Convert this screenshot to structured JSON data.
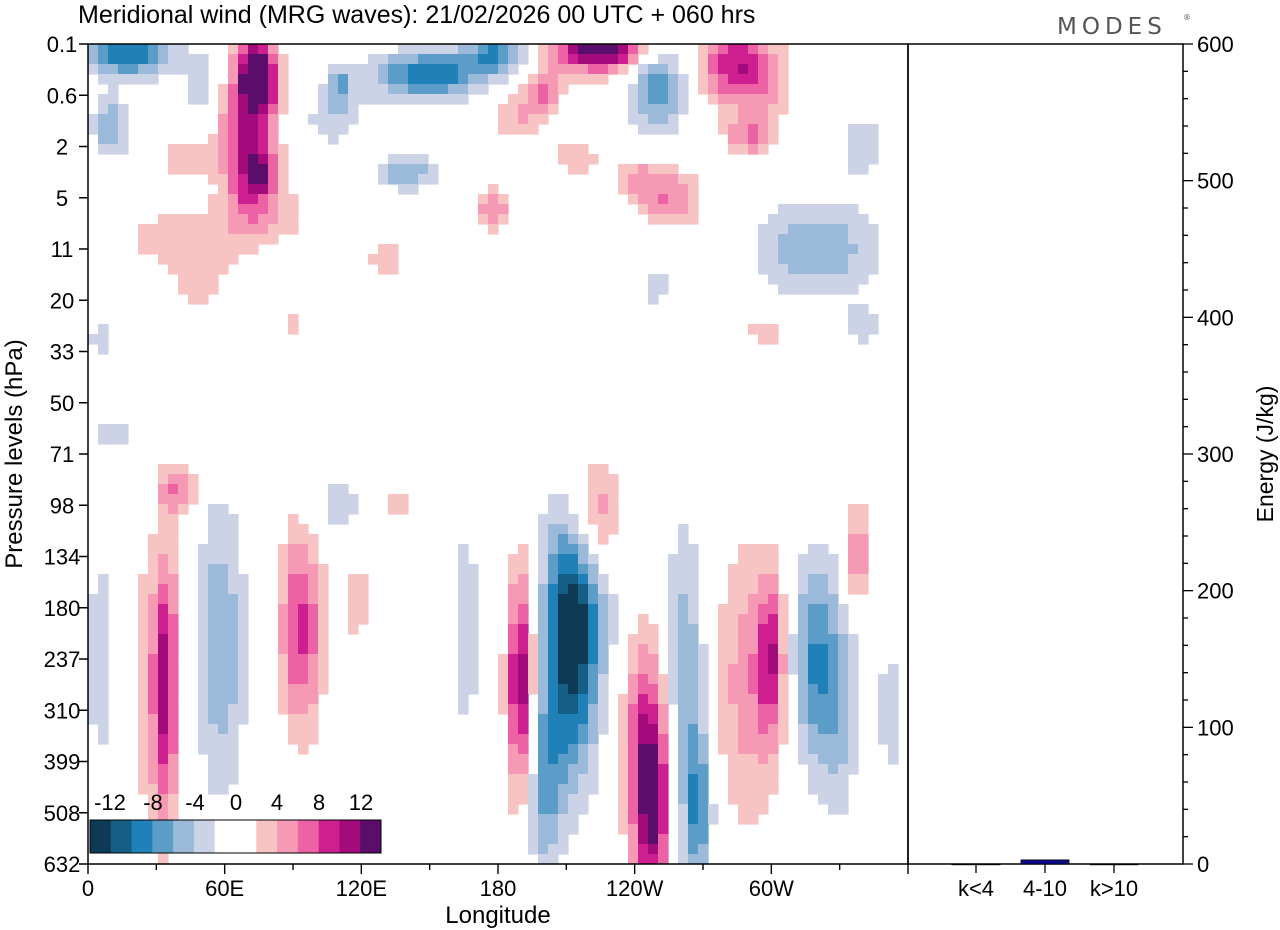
{
  "title": "Meridional wind (MRG waves):  21/02/2026  00 UTC  + 060 hrs",
  "logo": "MODES",
  "logo_mark": "®",
  "colors": {
    "neg": [
      "#0f3a55",
      "#155f86",
      "#1f81b8",
      "#5b9dc8",
      "#9bbad9",
      "#cdd3e6"
    ],
    "zero": "#ffffff",
    "pos": [
      "#f8c3c3",
      "#f599b4",
      "#ed62a5",
      "#cd1f8f",
      "#a30a7c",
      "#5b0d6b"
    ],
    "bar": "#0a0a8f"
  },
  "chart_data": [
    {
      "type": "heatmap",
      "title": "Meridional wind (MRG waves)",
      "xlabel": "Longitude",
      "ylabel": "Pressure levels (hPa)",
      "x_ticks": [
        "0",
        "60E",
        "120E",
        "180",
        "120W",
        "60W"
      ],
      "x_range_deg": [
        0,
        360
      ],
      "y_levels": [
        "0.1",
        "0.6",
        "2",
        "5",
        "11",
        "20",
        "33",
        "50",
        "71",
        "98",
        "134",
        "180",
        "237",
        "310",
        "399",
        "508",
        "632"
      ],
      "colorbar": {
        "labels": [
          "-12",
          "-8",
          "-4",
          "0",
          "4",
          "8",
          "12"
        ],
        "levels": [
          -14,
          -12,
          -10,
          -8,
          -6,
          -4,
          -2,
          2,
          4,
          6,
          8,
          10,
          12,
          14
        ]
      },
      "features": [
        {
          "lon": 18,
          "lev": 0.2,
          "lw": 18,
          "hl": 0.45,
          "v": -10
        },
        {
          "lon": 50,
          "lev": 0.7,
          "lw": 8,
          "hl": 0.6,
          "v": -4
        },
        {
          "lon": 10,
          "lev": 1.6,
          "lw": 8,
          "hl": 0.6,
          "v": -6
        },
        {
          "lon": 70,
          "lev": 1.8,
          "lw": 12,
          "hl": 1.5,
          "v": 10
        },
        {
          "lon": 75,
          "lev": 0.6,
          "lw": 8,
          "hl": 0.7,
          "v": 14
        },
        {
          "lon": 76,
          "lev": 2.6,
          "lw": 7,
          "hl": 0.5,
          "v": 8
        },
        {
          "lon": 80,
          "lev": 3.3,
          "lw": 22,
          "hl": 0.6,
          "v": 3
        },
        {
          "lon": 42,
          "lev": 2.2,
          "lw": 10,
          "hl": 0.4,
          "v": 4
        },
        {
          "lon": 78,
          "lev": 3.0,
          "lw": 5,
          "hl": 0.4,
          "v": -2.2
        },
        {
          "lon": 115,
          "lev": 1.5,
          "lw": 20,
          "hl": 0.5,
          "v": -4
        },
        {
          "lon": 150,
          "lev": 0.6,
          "lw": 24,
          "hl": 0.45,
          "v": -10
        },
        {
          "lon": 110,
          "lev": 0.8,
          "lw": 6,
          "hl": 0.4,
          "v": -6
        },
        {
          "lon": 125,
          "lev": 1.6,
          "lw": 10,
          "hl": 0.35,
          "v": 4
        },
        {
          "lon": 140,
          "lev": 2.5,
          "lw": 12,
          "hl": 0.35,
          "v": -6
        },
        {
          "lon": 180,
          "lev": 0.15,
          "lw": 14,
          "hl": 0.4,
          "v": -8
        },
        {
          "lon": 190,
          "lev": 1.4,
          "lw": 12,
          "hl": 0.5,
          "v": 4
        },
        {
          "lon": 200,
          "lev": 0.9,
          "lw": 8,
          "hl": 0.4,
          "v": 6
        },
        {
          "lon": 178,
          "lev": 3.2,
          "lw": 8,
          "hl": 0.4,
          "v": 6
        },
        {
          "lon": 215,
          "lev": 2.2,
          "lw": 12,
          "hl": 0.4,
          "v": 3
        },
        {
          "lon": 225,
          "lev": 0.1,
          "lw": 22,
          "hl": 0.45,
          "v": 14
        },
        {
          "lon": 250,
          "lev": 0.8,
          "lw": 12,
          "hl": 0.9,
          "v": -8
        },
        {
          "lon": 240,
          "lev": 2.6,
          "lw": 10,
          "hl": 0.4,
          "v": 4
        },
        {
          "lon": 255,
          "lev": 3.0,
          "lw": 14,
          "hl": 0.6,
          "v": 6
        },
        {
          "lon": 285,
          "lev": 0.4,
          "lw": 16,
          "hl": 0.8,
          "v": 10
        },
        {
          "lon": 290,
          "lev": 1.8,
          "lw": 10,
          "hl": 0.4,
          "v": 6
        },
        {
          "lon": 300,
          "lev": 0.9,
          "lw": 10,
          "hl": 0.6,
          "v": 3
        },
        {
          "lon": 320,
          "lev": 4.0,
          "lw": 26,
          "hl": 0.9,
          "v": -6
        },
        {
          "lon": 340,
          "lev": 2.0,
          "lw": 10,
          "hl": 0.8,
          "v": -3
        },
        {
          "lon": 40,
          "lev": 3.8,
          "lw": 24,
          "hl": 0.6,
          "v": 3.5
        },
        {
          "lon": 50,
          "lev": 4.8,
          "lw": 14,
          "hl": 0.7,
          "v": 2.5
        },
        {
          "lon": 130,
          "lev": 4.2,
          "lw": 8,
          "hl": 0.5,
          "v": 3
        },
        {
          "lon": 5,
          "lev": 5.8,
          "lw": 6,
          "hl": 0.6,
          "v": -2.5
        },
        {
          "lon": 90,
          "lev": 5.4,
          "lw": 6,
          "hl": 0.3,
          "v": 3
        },
        {
          "lon": 60,
          "lev": 5.3,
          "lw": 8,
          "hl": 0.3,
          "v": -2.5
        },
        {
          "lon": 250,
          "lev": 4.7,
          "lw": 8,
          "hl": 0.7,
          "v": -2.5
        },
        {
          "lon": 298,
          "lev": 5.6,
          "lw": 12,
          "hl": 0.4,
          "v": 3
        },
        {
          "lon": 340,
          "lev": 5.5,
          "lw": 10,
          "hl": 0.4,
          "v": -3
        },
        {
          "lon": 10,
          "lev": 7.6,
          "lw": 10,
          "hl": 0.4,
          "v": -3
        },
        {
          "lon": 40,
          "lev": 8.7,
          "lw": 8,
          "hl": 0.5,
          "v": 6
        },
        {
          "lon": 110,
          "lev": 9.0,
          "lw": 14,
          "hl": 0.6,
          "v": -3
        },
        {
          "lon": 135,
          "lev": 9.0,
          "lw": 12,
          "hl": 0.4,
          "v": 3
        },
        {
          "lon": 5,
          "lev": 12.0,
          "lw": 6,
          "hl": 3.0,
          "v": -3
        },
        {
          "lon": 30,
          "lev": 12.5,
          "lw": 12,
          "hl": 3.0,
          "v": 4
        },
        {
          "lon": 34,
          "lev": 12.5,
          "lw": 5,
          "hl": 2.4,
          "v": 8
        },
        {
          "lon": 58,
          "lev": 11.8,
          "lw": 11,
          "hl": 2.8,
          "v": -6
        },
        {
          "lon": 92,
          "lev": 11.4,
          "lw": 8,
          "hl": 2.0,
          "v": 8
        },
        {
          "lon": 100,
          "lev": 11.5,
          "lw": 6,
          "hl": 2.0,
          "v": 2.5
        },
        {
          "lon": 118,
          "lev": 10.9,
          "lw": 8,
          "hl": 0.9,
          "v": 3
        },
        {
          "lon": 166,
          "lev": 11.4,
          "lw": 6,
          "hl": 2.0,
          "v": -4
        },
        {
          "lon": 190,
          "lev": 12.5,
          "lw": 6,
          "hl": 2.2,
          "v": 12
        },
        {
          "lon": 200,
          "lev": 14.5,
          "lw": 8,
          "hl": 1.8,
          "v": -6
        },
        {
          "lon": 212,
          "lev": 11.8,
          "lw": 12,
          "hl": 2.6,
          "v": -12
        },
        {
          "lon": 218,
          "lev": 10.5,
          "lw": 16,
          "hl": 2.0,
          "v": -4
        },
        {
          "lon": 222,
          "lev": 9.2,
          "lw": 12,
          "hl": 1.2,
          "v": 8
        },
        {
          "lon": 245,
          "lev": 13.5,
          "lw": 10,
          "hl": 2.2,
          "v": 8
        },
        {
          "lon": 248,
          "lev": 15.0,
          "lw": 8,
          "hl": 1.8,
          "v": 10
        },
        {
          "lon": 262,
          "lev": 12.5,
          "lw": 10,
          "hl": 3.0,
          "v": -6
        },
        {
          "lon": 268,
          "lev": 15.0,
          "lw": 6,
          "hl": 1.5,
          "v": -7
        },
        {
          "lon": 290,
          "lev": 12.5,
          "lw": 16,
          "hl": 2.8,
          "v": 5
        },
        {
          "lon": 300,
          "lev": 12.0,
          "lw": 6,
          "hl": 1.5,
          "v": 8
        },
        {
          "lon": 320,
          "lev": 12.0,
          "lw": 12,
          "hl": 2.0,
          "v": -8
        },
        {
          "lon": 333,
          "lev": 13.5,
          "lw": 14,
          "hl": 2.0,
          "v": -3
        },
        {
          "lon": 338,
          "lev": 10.0,
          "lw": 6,
          "hl": 1.0,
          "v": 6
        },
        {
          "lon": 342,
          "lev": 14.5,
          "lw": 5,
          "hl": 1.4,
          "v": 4
        },
        {
          "lon": 352,
          "lev": 13.0,
          "lw": 5,
          "hl": 1.8,
          "v": -2.5
        }
      ]
    },
    {
      "type": "bar",
      "ylabel": "Energy (J/kg)",
      "categories": [
        "k<4",
        "4-10",
        "k>10"
      ],
      "values": [
        0,
        3,
        0
      ],
      "ylim": [
        0,
        600
      ],
      "y_ticks": [
        "0",
        "100",
        "200",
        "300",
        "400",
        "500",
        "600"
      ]
    }
  ]
}
